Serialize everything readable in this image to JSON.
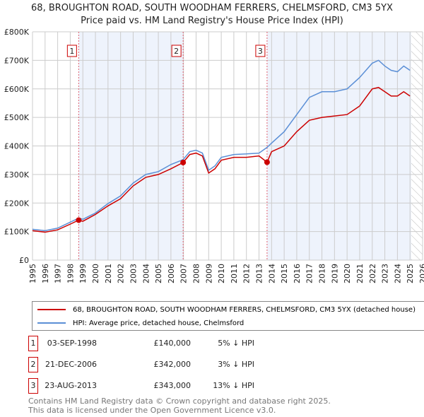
{
  "title": "68, BROUGHTON ROAD, SOUTH WOODHAM FERRERS, CHELMSFORD, CM3 5YX",
  "subtitle": "Price paid vs. HM Land Registry's House Price Index (HPI)",
  "chart_data": {
    "type": "line",
    "y_ticks": [
      {
        "v": 0,
        "label": "£0"
      },
      {
        "v": 100,
        "label": "£100K"
      },
      {
        "v": 200,
        "label": "£200K"
      },
      {
        "v": 300,
        "label": "£300K"
      },
      {
        "v": 400,
        "label": "£400K"
      },
      {
        "v": 500,
        "label": "£500K"
      },
      {
        "v": 600,
        "label": "£600K"
      },
      {
        "v": 700,
        "label": "£700K"
      },
      {
        "v": 800,
        "label": "£800K"
      }
    ],
    "x_ticks": [
      "1995",
      "1996",
      "1997",
      "1998",
      "1999",
      "2000",
      "2001",
      "2002",
      "2003",
      "2004",
      "2005",
      "2006",
      "2007",
      "2008",
      "2009",
      "2010",
      "2011",
      "2012",
      "2013",
      "2014",
      "2015",
      "2016",
      "2017",
      "2018",
      "2019",
      "2020",
      "2021",
      "2022",
      "2023",
      "2024",
      "2025",
      "2026"
    ],
    "xlim": [
      1995,
      2026
    ],
    "ylim": [
      0,
      800
    ],
    "y_units": "£K",
    "grid": true,
    "legend_placement": "below",
    "series": [
      {
        "name": "68, BROUGHTON ROAD, SOUTH WOODHAM FERRERS, CHELMSFORD, CM3 5YX (detached house)",
        "color": "#cc0000",
        "x": [
          1995,
          1996,
          1997,
          1998,
          1998.67,
          1999,
          2000,
          2001,
          2002,
          2003,
          2004,
          2005,
          2006,
          2006.97,
          2007.5,
          2008,
          2008.5,
          2009,
          2009.5,
          2010,
          2011,
          2012,
          2013,
          2013.64,
          2014,
          2015,
          2016,
          2017,
          2018,
          2019,
          2020,
          2021,
          2022,
          2022.5,
          2023,
          2023.5,
          2024,
          2024.5,
          2025
        ],
        "y": [
          103,
          98,
          106,
          126,
          140,
          136,
          160,
          190,
          215,
          260,
          290,
          300,
          320,
          342,
          370,
          375,
          365,
          305,
          320,
          350,
          360,
          360,
          365,
          343,
          380,
          400,
          450,
          490,
          500,
          505,
          510,
          540,
          600,
          605,
          590,
          575,
          575,
          590,
          575
        ]
      },
      {
        "name": "HPI: Average price, detached house, Chelmsford",
        "color": "#5b8fd6",
        "x": [
          1995,
          1996,
          1997,
          1998,
          1998.67,
          1999,
          2000,
          2001,
          2002,
          2003,
          2004,
          2005,
          2006,
          2006.97,
          2007.5,
          2008,
          2008.5,
          2009,
          2009.5,
          2010,
          2011,
          2012,
          2013,
          2013.64,
          2014,
          2015,
          2016,
          2017,
          2018,
          2019,
          2020,
          2021,
          2022,
          2022.5,
          2023,
          2023.5,
          2024,
          2024.5,
          2025
        ],
        "y": [
          108,
          103,
          112,
          133,
          147,
          143,
          165,
          198,
          225,
          270,
          300,
          310,
          335,
          352,
          380,
          385,
          375,
          315,
          330,
          360,
          370,
          372,
          375,
          395,
          410,
          450,
          510,
          570,
          590,
          590,
          600,
          640,
          690,
          700,
          680,
          665,
          660,
          680,
          665
        ]
      }
    ],
    "sales": [
      {
        "n": "1",
        "x": 1998.67,
        "y": 140,
        "date": "03-SEP-1998",
        "price": "£140,000",
        "hpi": "5% ↓ HPI"
      },
      {
        "n": "2",
        "x": 2006.97,
        "y": 342,
        "date": "21-DEC-2006",
        "price": "£342,000",
        "hpi": "3% ↓ HPI"
      },
      {
        "n": "3",
        "x": 2013.64,
        "y": 343,
        "date": "23-AUG-2013",
        "price": "£343,000",
        "hpi": "13% ↓ HPI"
      }
    ],
    "forecast_start": 2025.1
  },
  "footer1": "Contains HM Land Registry data © Crown copyright and database right 2025.",
  "footer2": "This data is licensed under the Open Government Licence v3.0."
}
